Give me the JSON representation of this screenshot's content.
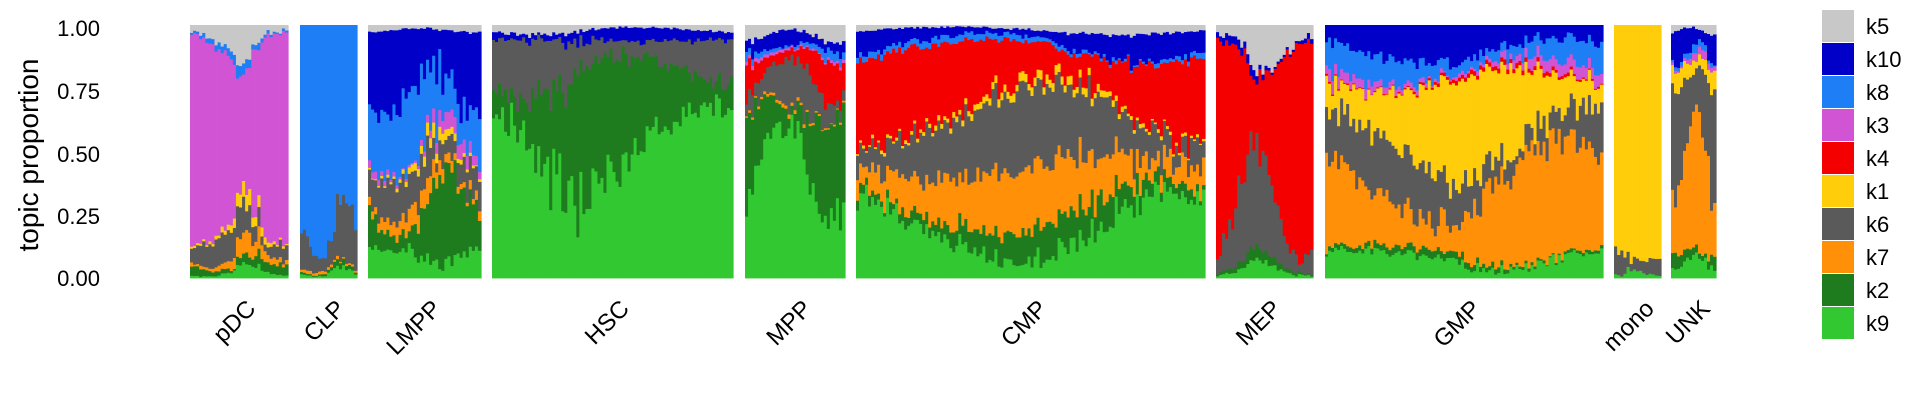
{
  "chart_data": {
    "type": "stacked-bar (structure plot)",
    "ylabel": "topic proportion",
    "ylim": [
      0,
      1
    ],
    "yticks": [
      "0.00",
      "0.25",
      "0.50",
      "0.75",
      "1.00"
    ],
    "stack_order_bottom_to_top": [
      "k9",
      "k2",
      "k7",
      "k6",
      "k1",
      "k4",
      "k3",
      "k8",
      "k10",
      "k5"
    ],
    "legend": [
      {
        "topic": "k5",
        "color": "#c8c8c8"
      },
      {
        "topic": "k10",
        "color": "#0000c8"
      },
      {
        "topic": "k8",
        "color": "#1e7ef5"
      },
      {
        "topic": "k3",
        "color": "#d054d3"
      },
      {
        "topic": "k4",
        "color": "#f50000"
      },
      {
        "topic": "k1",
        "color": "#ffcd0a"
      },
      {
        "topic": "k6",
        "color": "#5a5a5a"
      },
      {
        "topic": "k7",
        "color": "#ff9008"
      },
      {
        "topic": "k2",
        "color": "#1e7c1e"
      },
      {
        "topic": "k9",
        "color": "#32c832"
      }
    ],
    "groups": [
      {
        "label": "pDC",
        "mean": {
          "k9": 0.02,
          "k2": 0.03,
          "k7": 0.03,
          "k6": 0.08,
          "k1": 0.02,
          "k4": 0.0,
          "k3": 0.74,
          "k8": 0.02,
          "k10": 0.0,
          "k5": 0.06
        }
      },
      {
        "label": "CLP",
        "mean": {
          "k9": 0.02,
          "k2": 0.01,
          "k7": 0.01,
          "k6": 0.14,
          "k1": 0.0,
          "k4": 0.0,
          "k3": 0.0,
          "k8": 0.82,
          "k10": 0.0,
          "k5": 0.0
        }
      },
      {
        "label": "LMPP",
        "mean": {
          "k9": 0.1,
          "k2": 0.16,
          "k7": 0.05,
          "k6": 0.12,
          "k1": 0.02,
          "k4": 0.0,
          "k3": 0.03,
          "k8": 0.22,
          "k10": 0.28,
          "k5": 0.02
        }
      },
      {
        "label": "HSC",
        "mean": {
          "k9": 0.55,
          "k2": 0.26,
          "k7": 0.0,
          "k6": 0.13,
          "k1": 0.0,
          "k4": 0.0,
          "k3": 0.0,
          "k8": 0.0,
          "k10": 0.04,
          "k5": 0.02
        }
      },
      {
        "label": "MPP",
        "mean": {
          "k9": 0.45,
          "k2": 0.22,
          "k7": 0.01,
          "k6": 0.12,
          "k1": 0.0,
          "k4": 0.08,
          "k3": 0.01,
          "k8": 0.02,
          "k10": 0.05,
          "k5": 0.04
        }
      },
      {
        "label": "CMP",
        "mean": {
          "k9": 0.2,
          "k2": 0.08,
          "k7": 0.16,
          "k6": 0.2,
          "k1": 0.02,
          "k4": 0.24,
          "k3": 0.0,
          "k8": 0.02,
          "k10": 0.06,
          "k5": 0.02
        }
      },
      {
        "label": "MEP",
        "mean": {
          "k9": 0.03,
          "k2": 0.02,
          "k7": 0.0,
          "k6": 0.18,
          "k1": 0.0,
          "k4": 0.66,
          "k3": 0.0,
          "k8": 0.0,
          "k10": 0.02,
          "k5": 0.09
        }
      },
      {
        "label": "GMP",
        "mean": {
          "k9": 0.08,
          "k2": 0.02,
          "k7": 0.28,
          "k6": 0.16,
          "k1": 0.24,
          "k4": 0.01,
          "k3": 0.03,
          "k8": 0.08,
          "k10": 0.1,
          "k5": 0.0
        }
      },
      {
        "label": "mono",
        "mean": {
          "k9": 0.02,
          "k2": 0.0,
          "k7": 0.0,
          "k6": 0.06,
          "k1": 0.92,
          "k4": 0.0,
          "k3": 0.0,
          "k8": 0.0,
          "k10": 0.0,
          "k5": 0.0
        }
      },
      {
        "label": "UNK",
        "mean": {
          "k9": 0.06,
          "k2": 0.04,
          "k7": 0.38,
          "k6": 0.3,
          "k1": 0.06,
          "k4": 0.0,
          "k3": 0.02,
          "k8": 0.02,
          "k10": 0.1,
          "k5": 0.02
        }
      }
    ]
  }
}
